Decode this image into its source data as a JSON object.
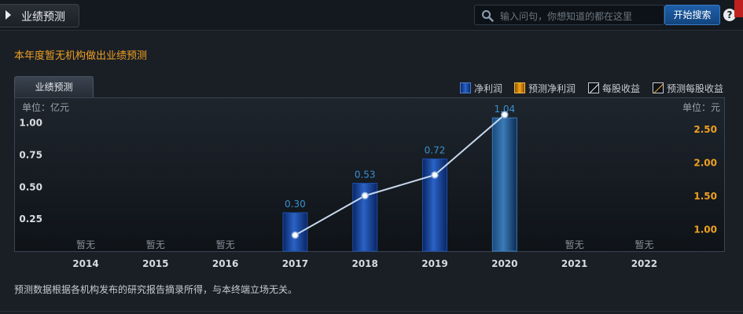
{
  "header": {
    "title": "业绩预测",
    "search_placeholder": "输入问句，你想知道的都在这里",
    "search_button": "开始搜索",
    "help_glyph": "?"
  },
  "notice": "本年度暂无机构做出业绩预测",
  "panel_tab": "业绩预测",
  "legend": {
    "net_profit": "净利润",
    "forecast_net_profit": "预测净利润",
    "eps": "每股收益",
    "forecast_eps": "预测每股收益"
  },
  "colors": {
    "net_profit": "#2a63c7",
    "forecast_net_profit": "#f3a318",
    "eps_line": "#c9d9ee",
    "left_axis_text": "#d8dce0",
    "right_axis_text": "#f0a020",
    "bar_label": "#3a8fd0",
    "na_text": "#8a9098"
  },
  "footnote": "预测数据根据各机构发布的研究报告摘录所得，与本终端立场无关。",
  "chart_data": {
    "type": "bar",
    "categories": [
      "2014",
      "2015",
      "2016",
      "2017",
      "2018",
      "2019",
      "2020",
      "2021",
      "2022"
    ],
    "left_unit": "单位：亿元",
    "right_unit": "单位：元",
    "left_ticks": [
      "0.25",
      "0.50",
      "0.75",
      "1.00"
    ],
    "right_ticks": [
      "1.00",
      "1.50",
      "2.00",
      "2.50"
    ],
    "ylim_left": [
      0,
      1.2
    ],
    "ylim_right": [
      0.68,
      2.98
    ],
    "no_data_label": "暂无",
    "series": [
      {
        "name": "净利润",
        "axis": "left",
        "values": [
          null,
          null,
          null,
          0.3,
          0.53,
          0.72,
          1.04,
          null,
          null
        ],
        "labels": [
          "暂无",
          "暂无",
          "暂无",
          "0.30",
          "0.53",
          "0.72",
          "1.04",
          "暂无",
          "暂无"
        ]
      },
      {
        "name": "每股收益",
        "type": "line",
        "axis": "right",
        "values": [
          null,
          null,
          null,
          0.92,
          1.51,
          1.82,
          2.72,
          null,
          null
        ]
      }
    ],
    "grid": false
  }
}
